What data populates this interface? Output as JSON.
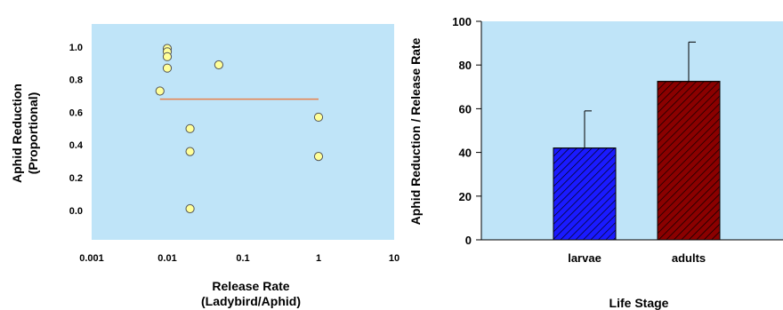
{
  "chart_data": [
    {
      "type": "scatter",
      "title": "",
      "xlabel_line1": "Release Rate",
      "xlabel_line2": "(Ladybird/Aphid)",
      "ylabel_line1": "Aphid Reduction",
      "ylabel_line2": "(Proportional)",
      "x_scale": "log",
      "xlim": [
        0.001,
        10
      ],
      "ylim": [
        -0.18,
        1.14
      ],
      "x_ticks": [
        {
          "value": 0.001,
          "label": "0.001"
        },
        {
          "value": 0.01,
          "label": "0.01"
        },
        {
          "value": 0.1,
          "label": "0.1"
        },
        {
          "value": 1,
          "label": "1"
        },
        {
          "value": 10,
          "label": "10"
        }
      ],
      "y_ticks": [
        {
          "value": 0.0,
          "label": "0.0"
        },
        {
          "value": 0.2,
          "label": "0.2"
        },
        {
          "value": 0.4,
          "label": "0.4"
        },
        {
          "value": 0.6,
          "label": "0.6"
        },
        {
          "value": 0.8,
          "label": "0.8"
        },
        {
          "value": 1.0,
          "label": "1.0"
        }
      ],
      "points": [
        {
          "x": 0.008,
          "y": 0.73
        },
        {
          "x": 0.01,
          "y": 0.99
        },
        {
          "x": 0.01,
          "y": 0.97
        },
        {
          "x": 0.01,
          "y": 0.94
        },
        {
          "x": 0.01,
          "y": 0.87
        },
        {
          "x": 0.02,
          "y": 0.5
        },
        {
          "x": 0.02,
          "y": 0.36
        },
        {
          "x": 0.02,
          "y": 0.01
        },
        {
          "x": 0.048,
          "y": 0.89
        },
        {
          "x": 1.0,
          "y": 0.57
        },
        {
          "x": 1.0,
          "y": 0.33
        }
      ],
      "fit_line": {
        "x": [
          0.008,
          1.0
        ],
        "y": [
          0.68,
          0.68
        ]
      },
      "grid": false,
      "colors": {
        "plot_bg": "#bfe4f8",
        "point_fill": "#ffff99",
        "point_stroke": "#555555",
        "fit_line": "#e8804a"
      }
    },
    {
      "type": "bar",
      "title": "",
      "xlabel": "Life Stage",
      "ylabel": "Aphid Reduction / Release Rate",
      "categories": [
        "larvae",
        "adults"
      ],
      "values": [
        42,
        72.5
      ],
      "errors": [
        17,
        18
      ],
      "ylim": [
        0,
        100
      ],
      "y_ticks": [
        {
          "value": 0,
          "label": "0"
        },
        {
          "value": 20,
          "label": "20"
        },
        {
          "value": 40,
          "label": "40"
        },
        {
          "value": 60,
          "label": "60"
        },
        {
          "value": 80,
          "label": "80"
        },
        {
          "value": 100,
          "label": "100"
        }
      ],
      "grid": false,
      "colors": {
        "plot_bg": "#bfe4f8",
        "bars": [
          "#1a1aff",
          "#8b0000"
        ],
        "hatch": "#000000"
      }
    }
  ]
}
